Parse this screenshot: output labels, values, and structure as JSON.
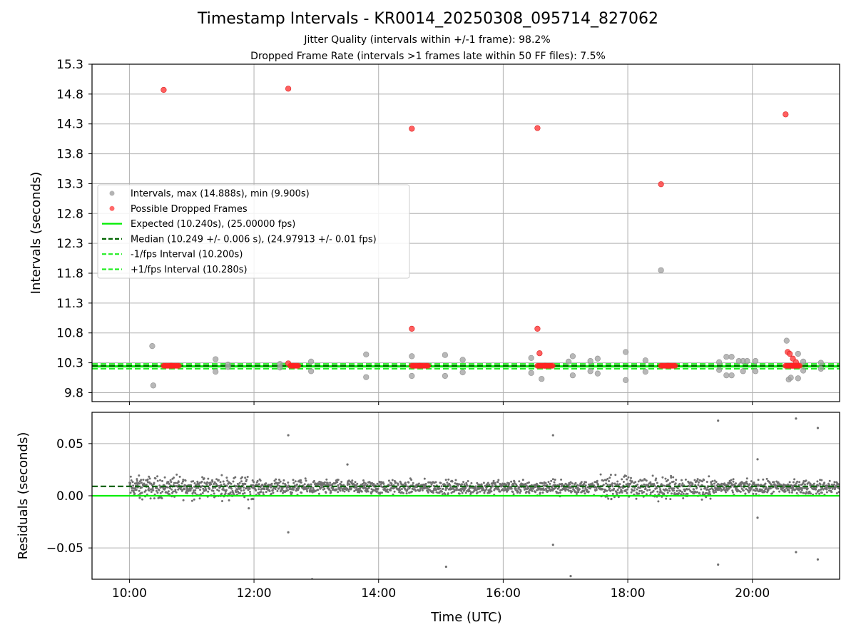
{
  "chart_data": [
    {
      "type": "scatter",
      "title": "Timestamp Intervals - KR0014_20250308_095714_827062",
      "subtitle_lines": [
        "Jitter Quality (intervals within +/-1 frame): 98.2%",
        "Dropped Frame Rate (intervals >1 frames late within 50 FF files): 7.5%"
      ],
      "ylabel": "Intervals (seconds)",
      "xlim": [
        "09:24",
        "21:24"
      ],
      "ylim": [
        9.65,
        15.3
      ],
      "yticks": [
        "15.3",
        "14.8",
        "14.3",
        "13.8",
        "13.3",
        "12.8",
        "12.3",
        "11.8",
        "11.3",
        "10.8",
        "10.3",
        "9.8"
      ],
      "xticks": [
        "10:00",
        "12:00",
        "14:00",
        "16:00",
        "18:00",
        "20:00"
      ],
      "grid": true,
      "legend_position": "center-left",
      "legend": [
        {
          "label": "Intervals, max (14.888s), min (9.900s)",
          "color": "#a0a0a0",
          "marker": "dot"
        },
        {
          "label": "Possible Dropped Frames",
          "color": "#ff4444",
          "marker": "dot"
        },
        {
          "label": "Expected (10.240s), (25.00000 fps)",
          "color": "#00ee00",
          "marker": "solid-line"
        },
        {
          "label": "Median (10.249 +/- 0.006 s), (24.97913 +/- 0.01 fps)",
          "color": "#006400",
          "marker": "dashed-line"
        },
        {
          "label": "-1/fps Interval (10.200s)",
          "color": "#22ee22",
          "marker": "dashed-line"
        },
        {
          "label": "+1/fps Interval (10.280s)",
          "color": "#22ee22",
          "marker": "dashed-line"
        }
      ],
      "reference_lines": [
        {
          "name": "Expected",
          "y": 10.24,
          "color": "#00ee00",
          "style": "solid"
        },
        {
          "name": "Median",
          "y": 10.249,
          "color": "#006400",
          "style": "dashed"
        },
        {
          "name": "-1/fps Interval",
          "y": 10.2,
          "color": "#22ee22",
          "style": "dashed"
        },
        {
          "name": "+1/fps Interval",
          "y": 10.28,
          "color": "#22ee22",
          "style": "dashed"
        }
      ],
      "series": [
        {
          "name": "Intervals, max (14.888s), min (9.900s)",
          "color": "#a0a0a0",
          "points": [
            [
              "10:22",
              10.58
            ],
            [
              "10:23",
              9.92
            ],
            [
              "11:23",
              10.36
            ],
            [
              "11:23",
              10.15
            ],
            [
              "12:55",
              10.32
            ],
            [
              "12:55",
              10.16
            ],
            [
              "13:48",
              10.44
            ],
            [
              "13:48",
              10.06
            ],
            [
              "14:32",
              10.41
            ],
            [
              "14:32",
              10.08
            ],
            [
              "15:04",
              10.43
            ],
            [
              "15:04",
              10.08
            ],
            [
              "15:21",
              10.35
            ],
            [
              "15:21",
              10.14
            ],
            [
              "16:27",
              10.38
            ],
            [
              "16:27",
              10.13
            ],
            [
              "16:37",
              10.03
            ],
            [
              "17:03",
              10.32
            ],
            [
              "17:07",
              10.41
            ],
            [
              "17:07",
              10.09
            ],
            [
              "17:24",
              10.33
            ],
            [
              "17:24",
              10.16
            ],
            [
              "17:31",
              10.37
            ],
            [
              "17:31",
              10.12
            ],
            [
              "17:58",
              10.48
            ],
            [
              "17:58",
              10.01
            ],
            [
              "18:17",
              10.34
            ],
            [
              "18:17",
              10.15
            ],
            [
              "18:32",
              11.85
            ],
            [
              "19:28",
              10.31
            ],
            [
              "19:28",
              10.18
            ],
            [
              "19:35",
              10.4
            ],
            [
              "19:35",
              10.09
            ],
            [
              "19:40",
              10.4
            ],
            [
              "19:40",
              10.09
            ],
            [
              "19:47",
              10.33
            ],
            [
              "19:51",
              10.33
            ],
            [
              "19:51",
              10.16
            ],
            [
              "19:55",
              10.33
            ],
            [
              "20:03",
              10.33
            ],
            [
              "20:03",
              10.16
            ],
            [
              "20:33",
              10.67
            ],
            [
              "20:35",
              10.02
            ],
            [
              "20:37",
              10.05
            ],
            [
              "20:44",
              10.45
            ],
            [
              "20:44",
              10.04
            ],
            [
              "20:49",
              10.32
            ],
            [
              "20:49",
              10.17
            ],
            [
              "21:06",
              10.3
            ],
            [
              "21:06",
              10.2
            ],
            [
              "11:35",
              10.27
            ],
            [
              "11:35",
              10.23
            ],
            [
              "12:25",
              10.28
            ],
            [
              "12:25",
              10.22
            ]
          ]
        },
        {
          "name": "Possible Dropped Frames",
          "color": "#ff4444",
          "points": [
            [
              "10:33",
              14.87
            ],
            [
              "12:33",
              14.89
            ],
            [
              "14:32",
              14.22
            ],
            [
              "14:32",
              10.87
            ],
            [
              "16:33",
              14.23
            ],
            [
              "16:33",
              10.87
            ],
            [
              "16:35",
              10.46
            ],
            [
              "18:32",
              13.29
            ],
            [
              "20:32",
              14.46
            ],
            [
              "20:34",
              10.48
            ],
            [
              "20:36",
              10.45
            ],
            [
              "20:39",
              10.37
            ],
            [
              "20:42",
              10.31
            ],
            [
              "12:33",
              10.29
            ]
          ],
          "clusters_near_10_25": [
            "10:33",
            "10:40",
            "12:35",
            "14:32",
            "14:40",
            "16:33",
            "16:40",
            "18:32",
            "18:38",
            "20:32",
            "20:38"
          ]
        }
      ]
    },
    {
      "type": "scatter",
      "xlabel": "Time (UTC)",
      "ylabel": "Residuals (seconds)",
      "xlim": [
        "09:24",
        "21:24"
      ],
      "ylim": [
        -0.08,
        0.08
      ],
      "yticks": [
        "0.05",
        "0.00",
        "−0.05"
      ],
      "xticks": [
        "10:00",
        "12:00",
        "14:00",
        "16:00",
        "18:00",
        "20:00"
      ],
      "grid": true,
      "reference_lines": [
        {
          "name": "Expected",
          "y": 0.0,
          "color": "#00ee00",
          "style": "solid"
        },
        {
          "name": "Median",
          "y": 0.009,
          "color": "#006400",
          "style": "dashed"
        }
      ],
      "residual_band": {
        "center": 0.008,
        "spread": 0.012,
        "extent": [
          "10:00",
          "21:24"
        ]
      },
      "outliers": [
        [
          "12:33",
          0.058
        ],
        [
          "12:33",
          -0.035
        ],
        [
          "12:56",
          -0.08
        ],
        [
          "15:05",
          -0.068
        ],
        [
          "16:48",
          0.058
        ],
        [
          "16:48",
          -0.047
        ],
        [
          "17:05",
          -0.077
        ],
        [
          "19:27",
          0.072
        ],
        [
          "19:27",
          -0.066
        ],
        [
          "20:05",
          0.035
        ],
        [
          "20:05",
          -0.021
        ],
        [
          "20:42",
          0.074
        ],
        [
          "20:42",
          -0.054
        ],
        [
          "21:03",
          0.065
        ],
        [
          "21:03",
          -0.061
        ],
        [
          "10:10",
          -0.002
        ],
        [
          "11:55",
          -0.012
        ],
        [
          "13:30",
          0.03
        ]
      ]
    }
  ]
}
